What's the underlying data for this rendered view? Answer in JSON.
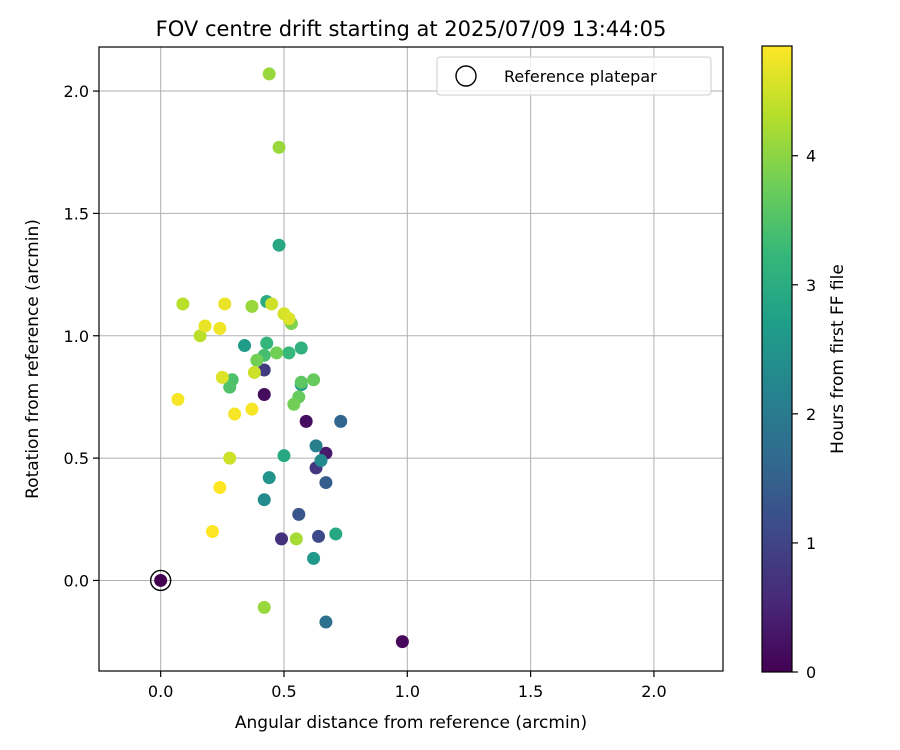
{
  "chart_data": {
    "type": "scatter",
    "title": "FOV centre drift starting at 2025/07/09 13:44:05",
    "xlabel": "Angular distance from reference (arcmin)",
    "ylabel": "Rotation from reference (arcmin)",
    "xlim": [
      -0.25,
      2.28
    ],
    "ylim": [
      -0.37,
      2.18
    ],
    "x_ticks": [
      "0.0",
      "0.5",
      "1.0",
      "1.5",
      "2.0"
    ],
    "y_ticks": [
      "0.0",
      "0.5",
      "1.0",
      "1.5",
      "2.0"
    ],
    "grid": true,
    "legend": {
      "placement": "top-right",
      "entries": [
        {
          "label": "Reference platepar",
          "x": 0.0,
          "y": 0.0
        }
      ]
    },
    "colorbar": {
      "label": "Hours from first FF file",
      "range": [
        0,
        4.85
      ],
      "ticks": [
        "0",
        "1",
        "2",
        "3",
        "4"
      ],
      "colormap": [
        "#440154",
        "#482878",
        "#3e4989",
        "#31688e",
        "#26828e",
        "#1f9e89",
        "#35b779",
        "#6ece58",
        "#b5de2b",
        "#fde725"
      ]
    },
    "points": [
      {
        "x": 0.0,
        "y": 0.0,
        "t": 0.0
      },
      {
        "x": 0.98,
        "y": -0.25,
        "t": 0.1
      },
      {
        "x": 0.42,
        "y": 0.76,
        "t": 0.15
      },
      {
        "x": 0.59,
        "y": 0.65,
        "t": 0.2
      },
      {
        "x": 0.67,
        "y": 0.52,
        "t": 0.35
      },
      {
        "x": 0.49,
        "y": 0.17,
        "t": 0.7
      },
      {
        "x": 0.63,
        "y": 0.46,
        "t": 0.8
      },
      {
        "x": 0.42,
        "y": 0.86,
        "t": 0.85
      },
      {
        "x": 0.64,
        "y": 0.18,
        "t": 1.1
      },
      {
        "x": 0.56,
        "y": 0.27,
        "t": 1.3
      },
      {
        "x": 0.67,
        "y": 0.4,
        "t": 1.4
      },
      {
        "x": 0.73,
        "y": 0.65,
        "t": 1.6
      },
      {
        "x": 0.67,
        "y": -0.17,
        "t": 1.8
      },
      {
        "x": 0.63,
        "y": 0.55,
        "t": 2.1
      },
      {
        "x": 0.65,
        "y": 0.49,
        "t": 2.3
      },
      {
        "x": 0.42,
        "y": 0.33,
        "t": 2.3
      },
      {
        "x": 0.44,
        "y": 0.42,
        "t": 2.5
      },
      {
        "x": 0.62,
        "y": 0.09,
        "t": 2.6
      },
      {
        "x": 0.34,
        "y": 0.96,
        "t": 2.65
      },
      {
        "x": 0.57,
        "y": 0.8,
        "t": 2.7
      },
      {
        "x": 0.48,
        "y": 1.37,
        "t": 2.9
      },
      {
        "x": 0.71,
        "y": 0.19,
        "t": 2.9
      },
      {
        "x": 0.5,
        "y": 0.51,
        "t": 2.9
      },
      {
        "x": 0.43,
        "y": 1.14,
        "t": 3.0
      },
      {
        "x": 0.57,
        "y": 0.95,
        "t": 3.1
      },
      {
        "x": 0.43,
        "y": 0.97,
        "t": 3.2
      },
      {
        "x": 0.52,
        "y": 0.93,
        "t": 3.25
      },
      {
        "x": 0.42,
        "y": 0.92,
        "t": 3.4
      },
      {
        "x": 0.29,
        "y": 0.82,
        "t": 3.45
      },
      {
        "x": 0.28,
        "y": 0.79,
        "t": 3.5
      },
      {
        "x": 0.57,
        "y": 0.81,
        "t": 3.6
      },
      {
        "x": 0.62,
        "y": 0.82,
        "t": 3.7
      },
      {
        "x": 0.56,
        "y": 0.75,
        "t": 3.7
      },
      {
        "x": 0.54,
        "y": 0.72,
        "t": 3.8
      },
      {
        "x": 0.39,
        "y": 0.9,
        "t": 3.8
      },
      {
        "x": 0.47,
        "y": 0.93,
        "t": 3.8
      },
      {
        "x": 0.53,
        "y": 1.05,
        "t": 3.9
      },
      {
        "x": 0.44,
        "y": 2.07,
        "t": 4.1
      },
      {
        "x": 0.48,
        "y": 1.77,
        "t": 4.1
      },
      {
        "x": 0.37,
        "y": 1.12,
        "t": 4.1
      },
      {
        "x": 0.42,
        "y": -0.11,
        "t": 4.1
      },
      {
        "x": 0.55,
        "y": 0.17,
        "t": 4.2
      },
      {
        "x": 0.09,
        "y": 1.13,
        "t": 4.35
      },
      {
        "x": 0.16,
        "y": 1.0,
        "t": 4.35
      },
      {
        "x": 0.45,
        "y": 1.13,
        "t": 4.5
      },
      {
        "x": 0.38,
        "y": 0.85,
        "t": 4.5
      },
      {
        "x": 0.5,
        "y": 1.09,
        "t": 4.55
      },
      {
        "x": 0.52,
        "y": 1.07,
        "t": 4.6
      },
      {
        "x": 0.18,
        "y": 1.04,
        "t": 4.7
      },
      {
        "x": 0.26,
        "y": 1.13,
        "t": 4.7
      },
      {
        "x": 0.28,
        "y": 0.5,
        "t": 4.5
      },
      {
        "x": 0.25,
        "y": 0.83,
        "t": 4.6
      },
      {
        "x": 0.24,
        "y": 1.03,
        "t": 4.75
      },
      {
        "x": 0.07,
        "y": 0.74,
        "t": 4.8
      },
      {
        "x": 0.3,
        "y": 0.68,
        "t": 4.8
      },
      {
        "x": 0.37,
        "y": 0.7,
        "t": 4.8
      },
      {
        "x": 0.24,
        "y": 0.38,
        "t": 4.85
      },
      {
        "x": 0.21,
        "y": 0.2,
        "t": 4.85
      }
    ]
  }
}
